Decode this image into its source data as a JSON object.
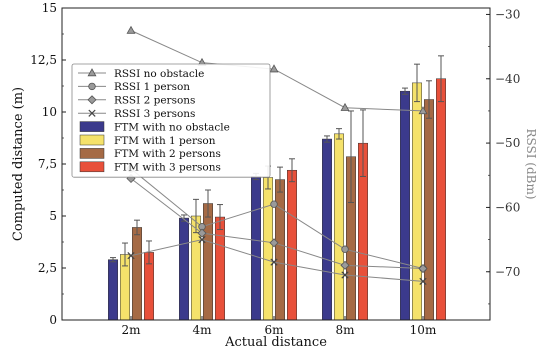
{
  "chart_data": {
    "type": "bar",
    "xlabel": "Actual distance",
    "ylabel": "Computed distance (m)",
    "ylabel_right": "RSSI (dBm)",
    "categories": [
      "2m",
      "4m",
      "6m",
      "8m",
      "10m"
    ],
    "ylim": [
      0,
      15
    ],
    "yticks": [
      0,
      2.5,
      5,
      7.5,
      10,
      12.5,
      15
    ],
    "ytick_labels": [
      "0",
      "2,5",
      "5",
      "7,5",
      "10",
      "12,5",
      "15"
    ],
    "ylim_right": [
      -77.5,
      -29
    ],
    "yticks_right": [
      -70,
      -60,
      -50,
      -40,
      -30
    ],
    "ytick_labels_right": [
      "−70",
      "−60",
      "−50",
      "−40",
      "−30"
    ],
    "grid": false,
    "legend_position": "upper-left",
    "bar_series": [
      {
        "name": "FTM with no obstacle",
        "color": "#3b3a8c",
        "values": [
          2.9,
          4.9,
          6.9,
          8.7,
          11.0
        ],
        "errors": [
          0.1,
          0.15,
          0.15,
          0.15,
          0.15
        ]
      },
      {
        "name": "FTM with 1 person",
        "color": "#f5e26b",
        "values": [
          3.15,
          5.0,
          6.85,
          8.95,
          11.4
        ],
        "errors": [
          0.55,
          0.8,
          0.55,
          0.25,
          0.9
        ]
      },
      {
        "name": "FTM with 2 persons",
        "color": "#a56a45",
        "values": [
          4.45,
          5.6,
          6.75,
          7.85,
          10.6
        ],
        "errors": [
          0.35,
          0.65,
          0.6,
          2.2,
          0.9
        ]
      },
      {
        "name": "FTM with 3 persons",
        "color": "#e8503a",
        "values": [
          3.25,
          4.95,
          7.2,
          8.5,
          11.6
        ],
        "errors": [
          0.55,
          0.6,
          0.55,
          1.6,
          1.1
        ]
      }
    ],
    "line_series": [
      {
        "name": "RSSI no obstacle",
        "marker": "triangle",
        "values": [
          -32.5,
          -37.5,
          -38.5,
          -44.5,
          -45.0
        ]
      },
      {
        "name": "RSSI 1 person",
        "marker": "circle",
        "values": [
          -54.0,
          -63.0,
          -59.5,
          -66.5,
          -69.5
        ]
      },
      {
        "name": "RSSI 2 persons",
        "marker": "diamond",
        "values": [
          -55.5,
          -64.0,
          -65.5,
          -69.0,
          -69.5
        ]
      },
      {
        "name": "RSSI 3 persons",
        "marker": "x",
        "values": [
          -67.5,
          -65.0,
          -68.5,
          -70.5,
          -71.5
        ]
      }
    ],
    "line_color": "#888888",
    "marker_fill": "#9a9a9a"
  }
}
